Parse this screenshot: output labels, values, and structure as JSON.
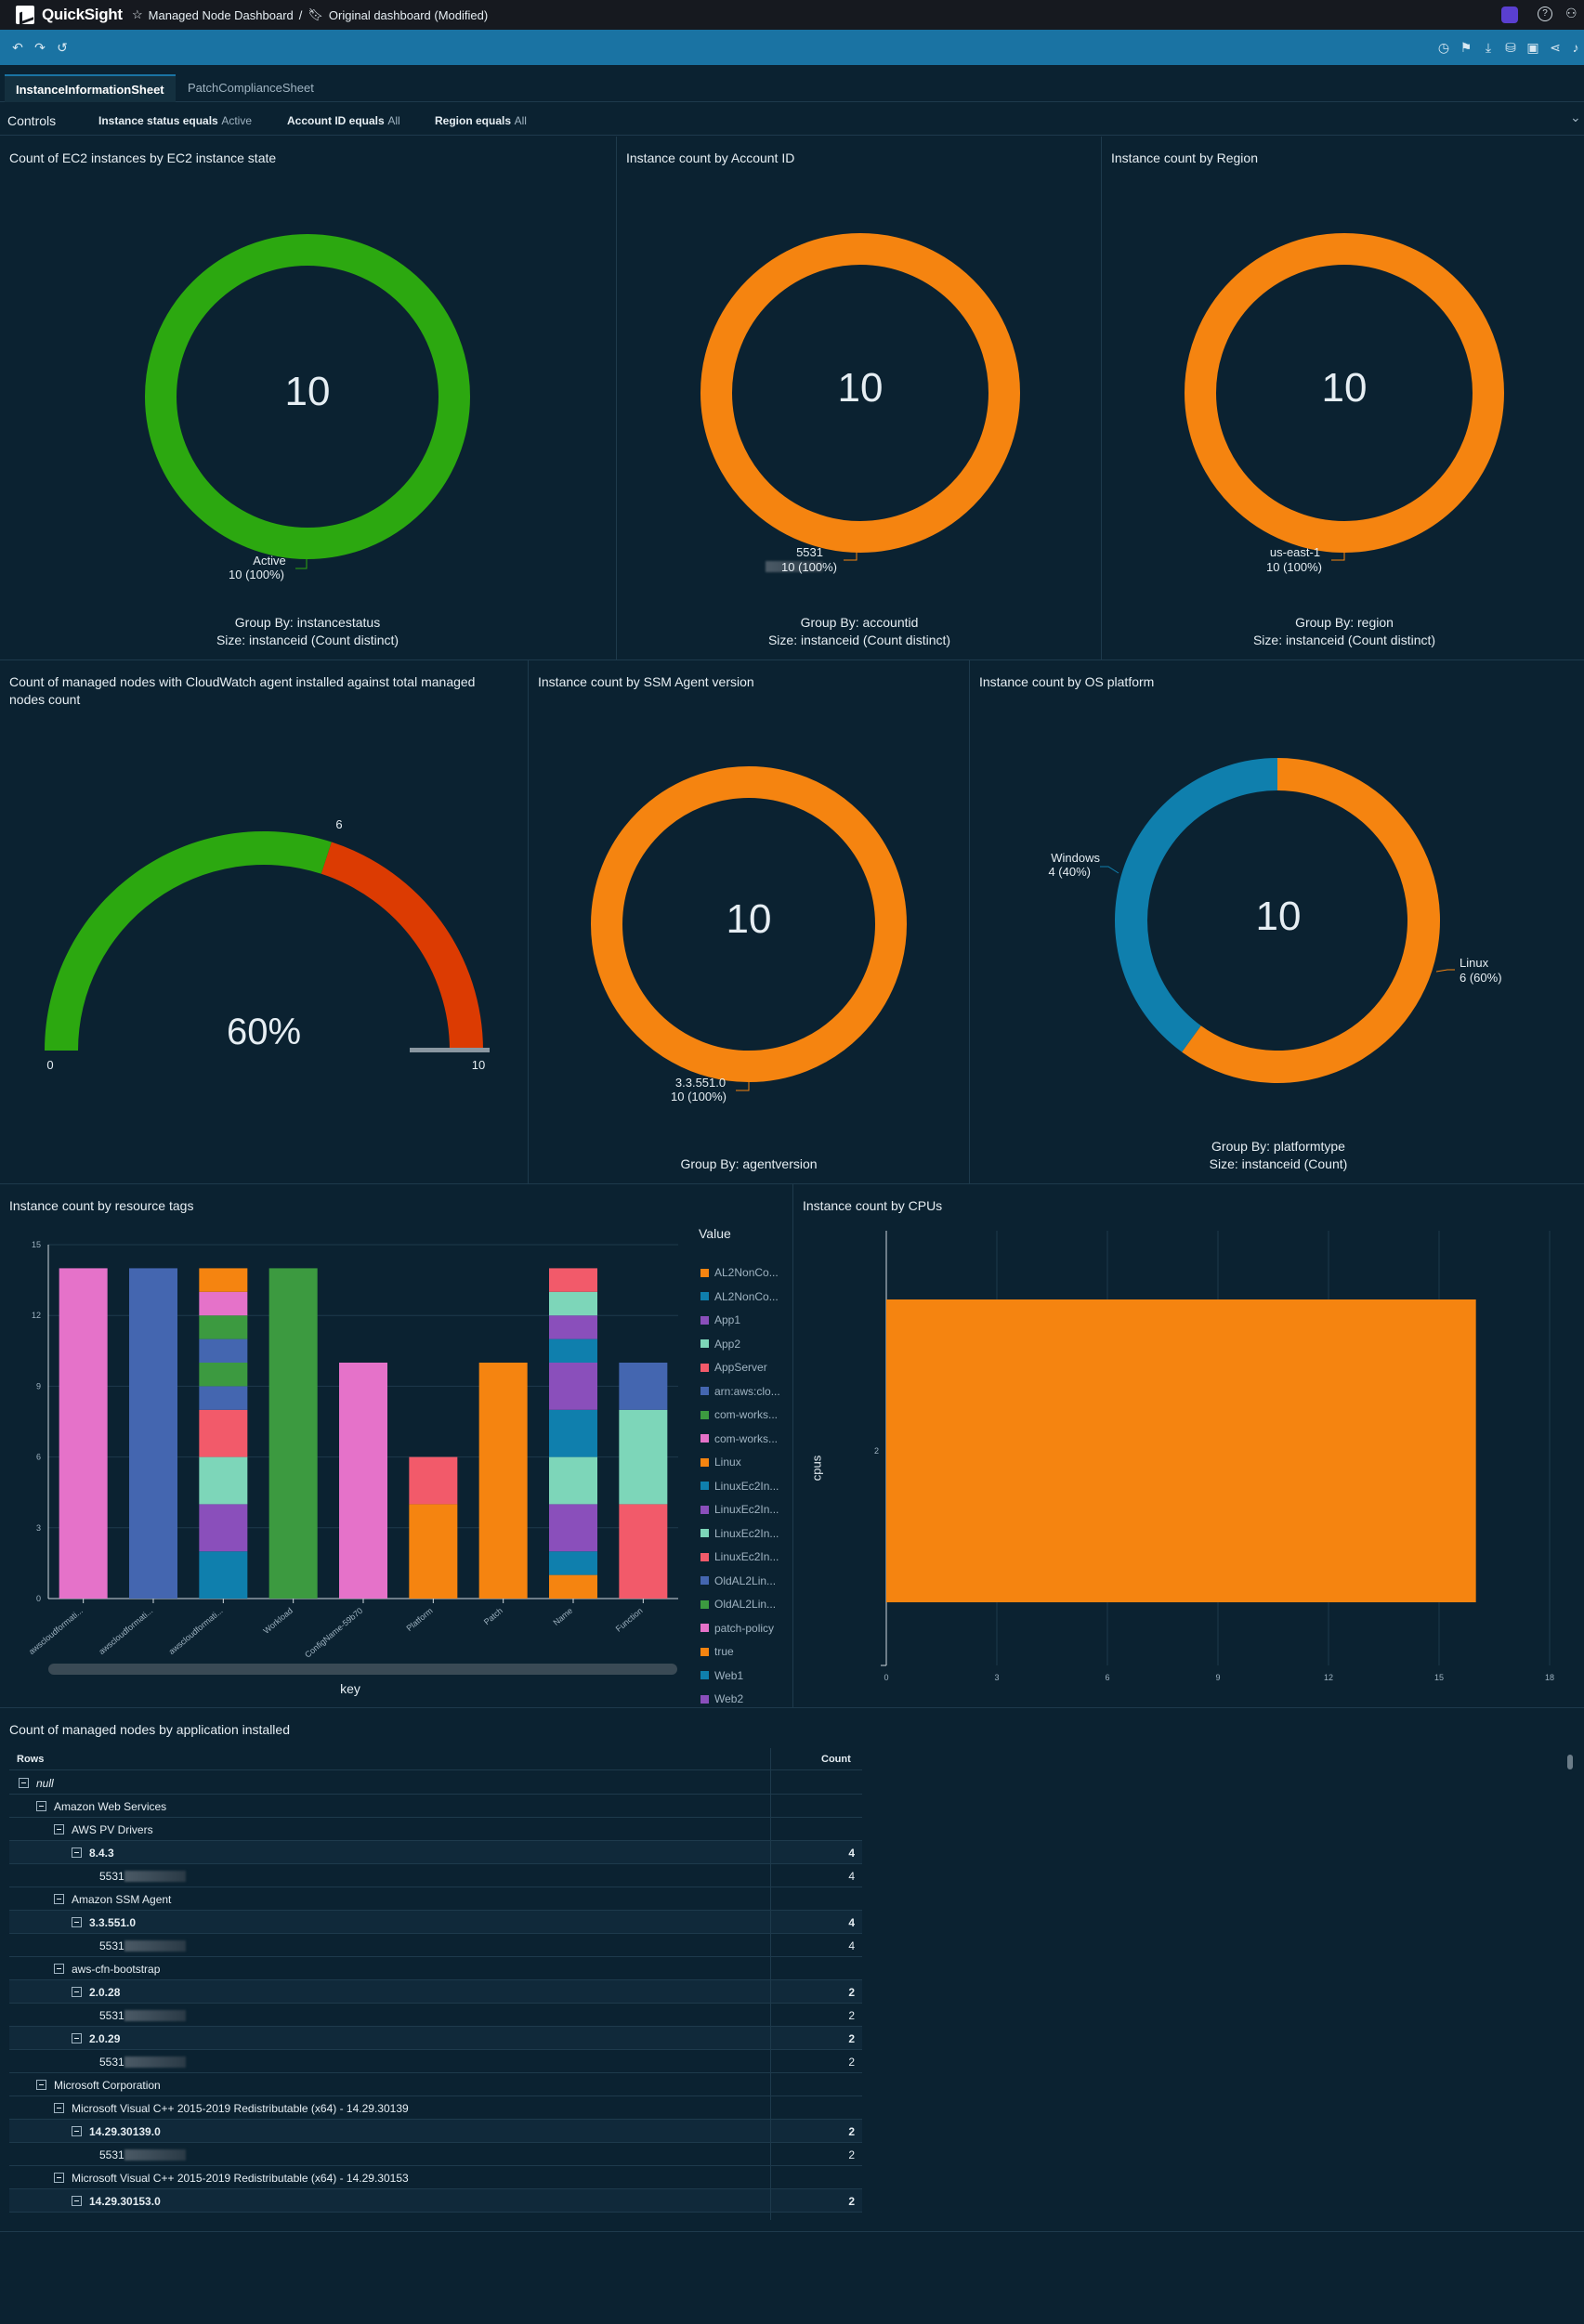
{
  "topbar": {
    "app_name": "QuickSight",
    "breadcrumb_1": "Managed Node Dashboard",
    "separator": "/",
    "breadcrumb_2": "Original dashboard (Modified)"
  },
  "tabs": [
    {
      "label": "InstanceInformationSheet"
    },
    {
      "label": "PatchComplianceSheet"
    }
  ],
  "controls": {
    "label": "Controls",
    "filters": [
      {
        "key": "Instance status equals",
        "value": "Active"
      },
      {
        "key": "Account ID equals",
        "value": "All"
      },
      {
        "key": "Region equals",
        "value": "All"
      }
    ]
  },
  "panels": {
    "ec2_state": {
      "title": "Count of EC2 instances by EC2 instance state",
      "center": "10",
      "label_name": "Active",
      "label_value": "10 (100%)",
      "cap1": "Group By: instancestatus",
      "cap2": "Size: instanceid (Count distinct)",
      "color": "#2ca810"
    },
    "account": {
      "title": "Instance count by Account ID",
      "center": "10",
      "label_name": "5531",
      "label_value": "10 (100%)",
      "cap1": "Group By: accountid",
      "cap2": "Size: instanceid (Count distinct)",
      "color": "#f58410"
    },
    "region": {
      "title": "Instance count by Region",
      "center": "10",
      "label_name": "us-east-1",
      "label_value": "10 (100%)",
      "cap1": "Group By: region",
      "cap2": "Size: instanceid (Count distinct)",
      "color": "#f58410"
    },
    "cloudwatch": {
      "title_line1": "Count of managed nodes with CloudWatch agent installed against total managed",
      "title_line2": "nodes count",
      "value_label": "60%",
      "target": "6",
      "min": "0",
      "max": "10",
      "fraction": 0.6
    },
    "ssm": {
      "title": "Instance count by SSM Agent version",
      "center": "10",
      "label_name": "3.3.551.0",
      "label_value": "10 (100%)",
      "cap1": "Group By: agentversion",
      "color": "#f58410"
    },
    "os": {
      "title": "Instance count by OS platform",
      "center": "10",
      "win_name": "Windows",
      "win_value": "4 (40%)",
      "lin_name": "Linux",
      "lin_value": "6 (60%)",
      "cap1": "Group By: platformtype",
      "cap2": "Size: instanceid (Count)"
    },
    "tags": {
      "title": "Instance count by resource tags",
      "xlabel": "key",
      "legend_title": "Value"
    },
    "cpus": {
      "title": "Instance count by CPUs",
      "ylabel": "cpus"
    },
    "apps": {
      "title": "Count of managed nodes by application installed",
      "col_rows": "Rows",
      "col_count": "Count"
    }
  },
  "chart_data": [
    {
      "type": "pie",
      "title": "Count of EC2 instances by EC2 instance state",
      "slices": [
        {
          "label": "Active",
          "value": 10
        }
      ]
    },
    {
      "type": "pie",
      "title": "Instance count by Account ID",
      "slices": [
        {
          "label": "5531",
          "value": 10
        }
      ]
    },
    {
      "type": "pie",
      "title": "Instance count by Region",
      "slices": [
        {
          "label": "us-east-1",
          "value": 10
        }
      ]
    },
    {
      "type": "pie",
      "title": "Instance count by SSM Agent version",
      "slices": [
        {
          "label": "3.3.551.0",
          "value": 10
        }
      ]
    },
    {
      "type": "pie",
      "title": "Instance count by OS platform",
      "slices": [
        {
          "label": "Windows",
          "value": 4,
          "color": "#0f7fad"
        },
        {
          "label": "Linux",
          "value": 6,
          "color": "#f58410"
        }
      ]
    },
    {
      "type": "bar",
      "title": "Instance count by resource tags",
      "xlabel": "key",
      "ylim": [
        0,
        15
      ],
      "yticks": [
        0,
        3,
        6,
        9,
        12,
        15
      ],
      "categories": [
        "awscloudformati...",
        "awscloudformati...",
        "awscloudformati...",
        "Workload",
        "ConfigName-59b70",
        "Platform",
        "Patch",
        "Name",
        "Function"
      ],
      "legend": [
        {
          "name": "AL2NonCo...",
          "color": "#f58410"
        },
        {
          "name": "AL2NonCo...",
          "color": "#0f7fad"
        },
        {
          "name": "App1",
          "color": "#8a4fbb"
        },
        {
          "name": "App2",
          "color": "#7dd6b9"
        },
        {
          "name": "AppServer",
          "color": "#f25a6a"
        },
        {
          "name": "arn:aws:clo...",
          "color": "#4466b0"
        },
        {
          "name": "com-works...",
          "color": "#3c9a40"
        },
        {
          "name": "com-works...",
          "color": "#e572c9"
        },
        {
          "name": "Linux",
          "color": "#f58410"
        },
        {
          "name": "LinuxEc2In...",
          "color": "#0f7fad"
        },
        {
          "name": "LinuxEc2In...",
          "color": "#8a4fbb"
        },
        {
          "name": "LinuxEc2In...",
          "color": "#7dd6b9"
        },
        {
          "name": "LinuxEc2In...",
          "color": "#f25a6a"
        },
        {
          "name": "OldAL2Lin...",
          "color": "#4466b0"
        },
        {
          "name": "OldAL2Lin...",
          "color": "#3c9a40"
        },
        {
          "name": "patch-policy",
          "color": "#e572c9"
        },
        {
          "name": "true",
          "color": "#f58410"
        },
        {
          "name": "Web1",
          "color": "#0f7fad"
        },
        {
          "name": "Web2",
          "color": "#8a4fbb"
        }
      ],
      "stacks": [
        [
          {
            "value": 14,
            "color": "#e572c9"
          }
        ],
        [
          {
            "value": 14,
            "color": "#4466b0"
          }
        ],
        [
          {
            "value": 2,
            "color": "#0f7fad"
          },
          {
            "value": 2,
            "color": "#8a4fbb"
          },
          {
            "value": 2,
            "color": "#7dd6b9"
          },
          {
            "value": 2,
            "color": "#f25a6a"
          },
          {
            "value": 1,
            "color": "#4466b0"
          },
          {
            "value": 1,
            "color": "#3c9a40"
          },
          {
            "value": 1,
            "color": "#4466b0"
          },
          {
            "value": 1,
            "color": "#3c9a40"
          },
          {
            "value": 1,
            "color": "#e572c9"
          },
          {
            "value": 1,
            "color": "#f58410"
          }
        ],
        [
          {
            "value": 14,
            "color": "#3c9a40"
          }
        ],
        [
          {
            "value": 10,
            "color": "#e572c9"
          }
        ],
        [
          {
            "value": 4,
            "color": "#f58410"
          },
          {
            "value": 2,
            "color": "#f25a6a"
          }
        ],
        [
          {
            "value": 10,
            "color": "#f58410"
          }
        ],
        [
          {
            "value": 1,
            "color": "#f58410"
          },
          {
            "value": 1,
            "color": "#0f7fad"
          },
          {
            "value": 2,
            "color": "#8a4fbb"
          },
          {
            "value": 2,
            "color": "#7dd6b9"
          },
          {
            "value": 2,
            "color": "#0f7fad"
          },
          {
            "value": 2,
            "color": "#8a4fbb"
          },
          {
            "value": 1,
            "color": "#0f7fad"
          },
          {
            "value": 1,
            "color": "#8a4fbb"
          },
          {
            "value": 1,
            "color": "#7dd6b9"
          },
          {
            "value": 1,
            "color": "#f25a6a"
          }
        ],
        [
          {
            "value": 4,
            "color": "#f25a6a"
          },
          {
            "value": 4,
            "color": "#7dd6b9"
          },
          {
            "value": 2,
            "color": "#4466b0"
          }
        ]
      ]
    },
    {
      "type": "bar",
      "orientation": "horizontal",
      "title": "Instance count by CPUs",
      "ylabel": "cpus",
      "categories": [
        "2"
      ],
      "values": [
        16
      ],
      "xlim": [
        0,
        18
      ],
      "xticks": [
        0,
        3,
        6,
        9,
        12,
        15,
        18
      ],
      "color": "#f58410"
    }
  ],
  "app_table": [
    {
      "level": 0,
      "label": "null",
      "italic": true,
      "count": ""
    },
    {
      "level": 1,
      "label": "Amazon Web Services",
      "count": ""
    },
    {
      "level": 2,
      "label": "AWS PV Drivers",
      "count": ""
    },
    {
      "level": 3,
      "label": "8.4.3",
      "bold": true,
      "count": "4"
    },
    {
      "level": 4,
      "label": "5531",
      "blur": true,
      "count": "4"
    },
    {
      "level": 2,
      "label": "Amazon SSM Agent",
      "count": ""
    },
    {
      "level": 3,
      "label": "3.3.551.0",
      "bold": true,
      "count": "4"
    },
    {
      "level": 4,
      "label": "5531",
      "blur": true,
      "count": "4"
    },
    {
      "level": 2,
      "label": "aws-cfn-bootstrap",
      "count": ""
    },
    {
      "level": 3,
      "label": "2.0.28",
      "bold": true,
      "count": "2"
    },
    {
      "level": 4,
      "label": "5531",
      "blur": true,
      "count": "2"
    },
    {
      "level": 3,
      "label": "2.0.29",
      "bold": true,
      "count": "2"
    },
    {
      "level": 4,
      "label": "5531",
      "blur": true,
      "count": "2"
    },
    {
      "level": 1,
      "label": "Microsoft Corporation",
      "count": ""
    },
    {
      "level": 2,
      "label": "Microsoft Visual C++ 2015-2019 Redistributable (x64) - 14.29.30139",
      "count": ""
    },
    {
      "level": 3,
      "label": "14.29.30139.0",
      "bold": true,
      "count": "2"
    },
    {
      "level": 4,
      "label": "5531",
      "blur": true,
      "count": "2"
    },
    {
      "level": 2,
      "label": "Microsoft Visual C++ 2015-2019 Redistributable (x64) - 14.29.30153",
      "count": ""
    },
    {
      "level": 3,
      "label": "14.29.30153.0",
      "bold": true,
      "count": "2"
    }
  ]
}
